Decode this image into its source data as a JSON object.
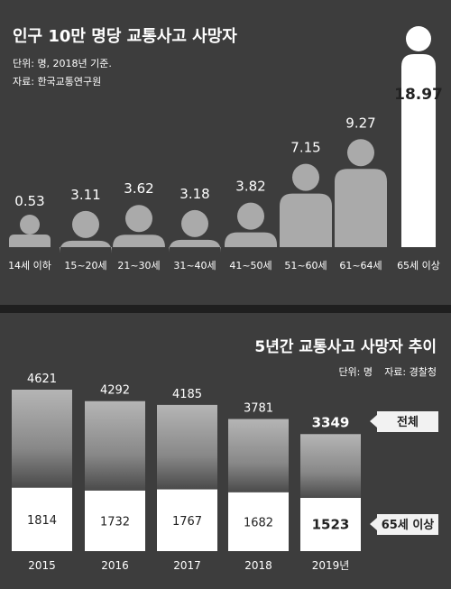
{
  "colors": {
    "background": "#3d3d3d",
    "figure": "#aaaaaa",
    "highlight": "#ffffff",
    "text": "#ffffff",
    "legend_box": "#f2f2f2",
    "divider": "#1f1f1f"
  },
  "chart_data": [
    {
      "type": "bar",
      "title": "인구 10만 명당 교통사고 사망자",
      "unit_note": "단위: 명, 2018년 기준.",
      "source": "자료: 한국교통연구원",
      "categories": [
        "14세 이하",
        "15~20세",
        "21~30세",
        "31~40세",
        "41~50세",
        "51~60세",
        "61~64세",
        "65세 이상"
      ],
      "values": [
        0.53,
        3.11,
        3.62,
        3.18,
        3.82,
        7.15,
        9.27,
        18.97
      ],
      "value_labels": [
        "0.53",
        "3.11",
        "3.62",
        "3.18",
        "3.82",
        "7.15",
        "9.27",
        "18.97"
      ],
      "highlight_category": "65세 이상",
      "marks": "person-silhouettes"
    },
    {
      "type": "bar",
      "title": "5년간 교통사고 사망자 추이",
      "unit_note": "단위: 명",
      "source": "자료: 경찰청",
      "categories": [
        "2015",
        "2016",
        "2017",
        "2018",
        "2019년"
      ],
      "series": [
        {
          "name": "전체",
          "values": [
            4621,
            4292,
            4185,
            3781,
            3349
          ]
        },
        {
          "name": "65세 이상",
          "values": [
            1814,
            1732,
            1767,
            1682,
            1523
          ]
        }
      ],
      "value_labels": {
        "total": [
          "4621",
          "4292",
          "4185",
          "3781",
          "3349"
        ],
        "elderly": [
          "1814",
          "1732",
          "1767",
          "1682",
          "1523"
        ]
      },
      "legend": [
        "전체",
        "65세 이상"
      ]
    }
  ]
}
